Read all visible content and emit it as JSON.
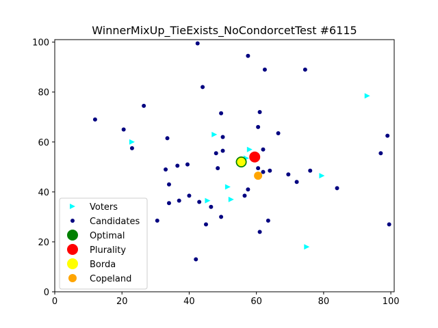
{
  "chart_data": {
    "type": "scatter",
    "title": "WinnerMixUp_TieExists_NoCondorcetTest #6115",
    "xlabel": "",
    "ylabel": "",
    "xlim": [
      0,
      101
    ],
    "ylim": [
      0,
      101
    ],
    "xticks": [
      0,
      20,
      40,
      60,
      80,
      100
    ],
    "yticks": [
      0,
      20,
      40,
      60,
      80,
      100
    ],
    "grid": false,
    "legend_placement": "lower-left",
    "series": [
      {
        "name": "Voters",
        "marker": "triangle-right",
        "color": "#00ffff",
        "points": [
          [
            93,
            78.5
          ],
          [
            23,
            60
          ],
          [
            47.5,
            63
          ],
          [
            58,
            57
          ],
          [
            57,
            53.5
          ],
          [
            79.5,
            46.5
          ],
          [
            51.5,
            42
          ],
          [
            45.5,
            36.5
          ],
          [
            52.5,
            37
          ],
          [
            75,
            18
          ]
        ]
      },
      {
        "name": "Candidates",
        "marker": "circle",
        "color": "#000080",
        "points": [
          [
            42.5,
            99.5
          ],
          [
            57.5,
            94.5
          ],
          [
            62.5,
            89
          ],
          [
            74.5,
            89
          ],
          [
            44,
            82
          ],
          [
            26.5,
            74.5
          ],
          [
            49.5,
            71.5
          ],
          [
            61,
            72
          ],
          [
            12,
            69
          ],
          [
            20.5,
            65
          ],
          [
            60.5,
            66
          ],
          [
            66.5,
            63.5
          ],
          [
            99,
            62.5
          ],
          [
            33.5,
            61.5
          ],
          [
            50,
            62
          ],
          [
            23,
            57.5
          ],
          [
            62,
            57
          ],
          [
            50,
            56.5
          ],
          [
            97,
            55.5
          ],
          [
            48,
            55.5
          ],
          [
            39.5,
            51
          ],
          [
            36.5,
            50.5
          ],
          [
            48.5,
            49.5
          ],
          [
            33,
            49
          ],
          [
            60.5,
            49.5
          ],
          [
            62,
            48
          ],
          [
            64,
            48.5
          ],
          [
            76,
            48.5
          ],
          [
            69.5,
            47
          ],
          [
            72,
            44
          ],
          [
            34,
            43
          ],
          [
            57.5,
            41
          ],
          [
            84,
            41.5
          ],
          [
            56.5,
            38.5
          ],
          [
            40,
            38.5
          ],
          [
            37,
            36.5
          ],
          [
            34,
            35.5
          ],
          [
            43,
            36
          ],
          [
            46.5,
            34
          ],
          [
            49.5,
            30
          ],
          [
            30.5,
            28.5
          ],
          [
            45,
            27
          ],
          [
            63.5,
            28.5
          ],
          [
            99.5,
            27
          ],
          [
            61,
            24
          ],
          [
            42,
            13
          ]
        ]
      },
      {
        "name": "Optimal",
        "marker": "circle-large",
        "color": "#008000",
        "points": [
          [
            55.5,
            52
          ]
        ]
      },
      {
        "name": "Plurality",
        "marker": "circle-large",
        "color": "#ff0000",
        "points": [
          [
            59.5,
            54
          ]
        ]
      },
      {
        "name": "Borda",
        "marker": "circle-large",
        "color": "#ffff00",
        "points": [
          [
            55.5,
            52
          ]
        ]
      },
      {
        "name": "Copeland",
        "marker": "circle-medium",
        "color": "#ffa500",
        "points": [
          [
            60.5,
            46.5
          ]
        ]
      }
    ]
  }
}
